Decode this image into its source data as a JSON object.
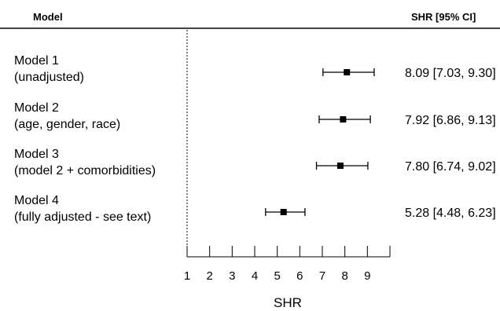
{
  "header": {
    "model_col": "Model",
    "estimate_col": "SHR [95% CI]"
  },
  "chart_data": {
    "type": "forest",
    "xlabel": "SHR",
    "xlim": [
      1,
      10
    ],
    "reference_line": 1,
    "x_ticks": [
      1,
      2,
      3,
      4,
      5,
      6,
      7,
      8,
      9
    ],
    "rows": [
      {
        "label_line1": "Model 1",
        "label_line2": "(unadjusted)",
        "estimate": 8.09,
        "ci_low": 7.03,
        "ci_high": 9.3,
        "estimate_text": "8.09 [7.03, 9.30]"
      },
      {
        "label_line1": "Model 2",
        "label_line2": "(age, gender, race)",
        "estimate": 7.92,
        "ci_low": 6.86,
        "ci_high": 9.13,
        "estimate_text": "7.92 [6.86, 9.13]"
      },
      {
        "label_line1": "Model 3",
        "label_line2": "(model 2 + comorbidities)",
        "estimate": 7.8,
        "ci_low": 6.74,
        "ci_high": 9.02,
        "estimate_text": "7.80 [6.74, 9.02]"
      },
      {
        "label_line1": "Model 4",
        "label_line2": "(fully adjusted - see text)",
        "estimate": 5.28,
        "ci_low": 4.48,
        "ci_high": 6.23,
        "estimate_text": "5.28 [4.48, 6.23]"
      }
    ]
  }
}
